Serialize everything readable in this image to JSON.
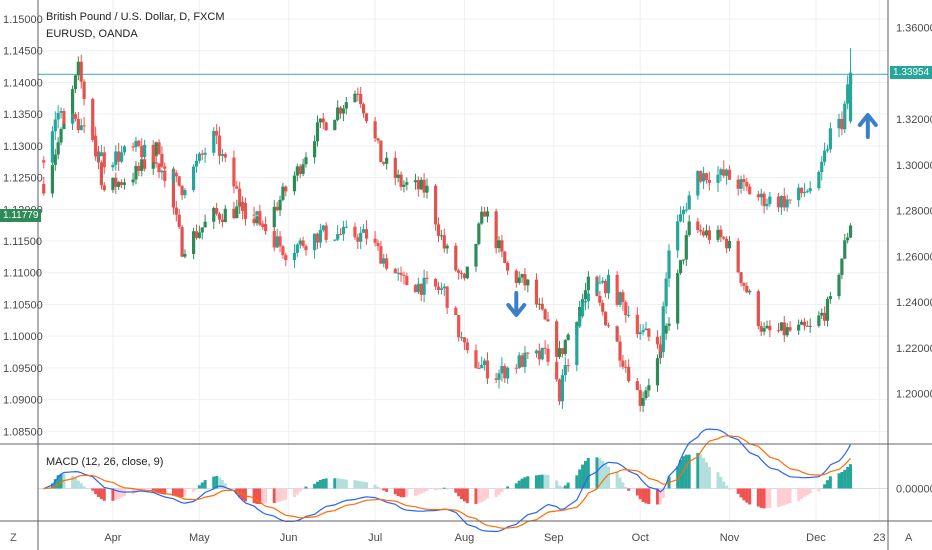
{
  "header": {
    "symbol_title": "British Pound / U.S. Dollar, D, FXCM",
    "compare_symbol": "EURUSD, OANDA",
    "macd_label": "MACD (12, 26, close, 9)"
  },
  "corner_labels": {
    "left": "Z",
    "right": "A"
  },
  "price_boxes": {
    "gbpusd_last": "1.33954",
    "eurusd_last": "1.11779"
  },
  "colors": {
    "up": "#26a69a",
    "down": "#ef5350",
    "compare_up": "#2e8b57",
    "compare_down": "#e0524d",
    "hline": "#5fbfbf",
    "macd_line": "#2962ff",
    "signal_line": "#ff6d00",
    "arrow": "#3a7fc8"
  },
  "chart_data": {
    "type": "candlestick",
    "left_axis": {
      "symbol": "EURUSD",
      "ticks": [
        "1.15000",
        "1.14500",
        "1.14000",
        "1.13500",
        "1.13000",
        "1.12500",
        "1.12000",
        "1.11500",
        "1.11000",
        "1.10500",
        "1.10000",
        "1.09500",
        "1.09000",
        "1.08500"
      ],
      "range": [
        1.083,
        1.153
      ]
    },
    "right_axis": {
      "symbol": "GBPUSD",
      "ticks": [
        "1.36000",
        "1.34000",
        "1.32000",
        "1.30000",
        "1.28000",
        "1.26000",
        "1.24000",
        "1.22000",
        "1.20000"
      ],
      "range": [
        1.178,
        1.372
      ]
    },
    "x_ticks": [
      "Apr",
      "May",
      "Jun",
      "Jul",
      "Aug",
      "Sep",
      "Oct",
      "Nov",
      "Dec",
      "23"
    ],
    "horizontal_line_value": 1.3395,
    "annotations": [
      {
        "type": "arrow-down",
        "near": "Aug",
        "symbol": "EURUSD"
      },
      {
        "type": "arrow-up",
        "near": "Dec",
        "symbol": "GBPUSD"
      }
    ],
    "gbpusd_path": [
      {
        "date": "2019-03-08",
        "close": 1.302
      },
      {
        "date": "2019-03-13",
        "close": 1.323
      },
      {
        "date": "2019-03-20",
        "close": 1.318
      },
      {
        "date": "2019-03-29",
        "close": 1.302
      },
      {
        "date": "2019-04-10",
        "close": 1.307
      },
      {
        "date": "2019-04-25",
        "close": 1.29
      },
      {
        "date": "2019-05-06",
        "close": 1.312
      },
      {
        "date": "2019-05-15",
        "close": 1.285
      },
      {
        "date": "2019-05-31",
        "close": 1.262
      },
      {
        "date": "2019-06-12",
        "close": 1.27
      },
      {
        "date": "2019-06-28",
        "close": 1.269
      },
      {
        "date": "2019-07-10",
        "close": 1.249
      },
      {
        "date": "2019-07-25",
        "close": 1.245
      },
      {
        "date": "2019-08-02",
        "close": 1.216
      },
      {
        "date": "2019-08-12",
        "close": 1.208
      },
      {
        "date": "2019-08-20",
        "close": 1.214
      },
      {
        "date": "2019-08-30",
        "close": 1.217
      },
      {
        "date": "2019-09-03",
        "close": 1.2
      },
      {
        "date": "2019-09-13",
        "close": 1.246
      },
      {
        "date": "2019-09-20",
        "close": 1.248
      },
      {
        "date": "2019-10-02",
        "close": 1.226
      },
      {
        "date": "2019-10-08",
        "close": 1.222
      },
      {
        "date": "2019-10-11",
        "close": 1.264
      },
      {
        "date": "2019-10-21",
        "close": 1.296
      },
      {
        "date": "2019-10-31",
        "close": 1.295
      },
      {
        "date": "2019-11-12",
        "close": 1.285
      },
      {
        "date": "2019-11-22",
        "close": 1.284
      },
      {
        "date": "2019-12-02",
        "close": 1.293
      },
      {
        "date": "2019-12-06",
        "close": 1.314
      },
      {
        "date": "2019-12-10",
        "close": 1.319
      },
      {
        "date": "2019-12-13",
        "close": 1.3395
      }
    ],
    "eurusd_path": [
      {
        "date": "2019-03-08",
        "close": 1.124
      },
      {
        "date": "2019-03-15",
        "close": 1.133
      },
      {
        "date": "2019-03-20",
        "close": 1.142
      },
      {
        "date": "2019-03-29",
        "close": 1.123
      },
      {
        "date": "2019-04-10",
        "close": 1.126
      },
      {
        "date": "2019-04-17",
        "close": 1.13
      },
      {
        "date": "2019-04-25",
        "close": 1.114
      },
      {
        "date": "2019-05-06",
        "close": 1.119
      },
      {
        "date": "2019-05-15",
        "close": 1.12
      },
      {
        "date": "2019-05-23",
        "close": 1.117
      },
      {
        "date": "2019-06-04",
        "close": 1.126
      },
      {
        "date": "2019-06-10",
        "close": 1.132
      },
      {
        "date": "2019-06-25",
        "close": 1.139
      },
      {
        "date": "2019-07-03",
        "close": 1.128
      },
      {
        "date": "2019-07-10",
        "close": 1.124
      },
      {
        "date": "2019-07-19",
        "close": 1.123
      },
      {
        "date": "2019-07-25",
        "close": 1.114
      },
      {
        "date": "2019-08-01",
        "close": 1.108
      },
      {
        "date": "2019-08-08",
        "close": 1.12
      },
      {
        "date": "2019-08-16",
        "close": 1.11
      },
      {
        "date": "2019-08-23",
        "close": 1.108
      },
      {
        "date": "2019-09-03",
        "close": 1.097
      },
      {
        "date": "2019-09-13",
        "close": 1.108
      },
      {
        "date": "2019-09-20",
        "close": 1.102
      },
      {
        "date": "2019-10-01",
        "close": 1.09
      },
      {
        "date": "2019-10-08",
        "close": 1.097
      },
      {
        "date": "2019-10-18",
        "close": 1.117
      },
      {
        "date": "2019-10-31",
        "close": 1.115
      },
      {
        "date": "2019-11-13",
        "close": 1.1005
      },
      {
        "date": "2019-11-29",
        "close": 1.101
      },
      {
        "date": "2019-12-06",
        "close": 1.105
      },
      {
        "date": "2019-12-13",
        "close": 1.118
      }
    ],
    "macd": {
      "ticks": [
        "0.00000"
      ],
      "range": [
        -0.0095,
        0.013
      ]
    }
  }
}
